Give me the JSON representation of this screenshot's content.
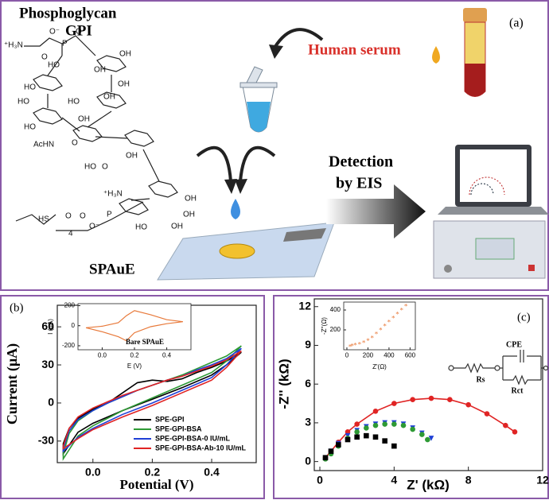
{
  "diagram": {
    "panel_label": "(a)",
    "title": "Phosphoglycan",
    "molecule": "GPI",
    "structure_labels": [
      "⁺H₃N",
      "O⁻",
      "P",
      "O",
      "O",
      "OH",
      "HO",
      "OH",
      "HO",
      "OH",
      "HO",
      "OH",
      "HO",
      "OH",
      "HO",
      "AcHN",
      "O",
      "OH",
      "HO",
      "O",
      "⁺H₃N",
      "O",
      "P",
      "O⁻",
      "HS",
      "4",
      "O",
      "OH",
      "OH",
      "HO",
      "OH"
    ],
    "serum_label": "Human serum",
    "detection_label": [
      "Detection",
      "by EIS"
    ],
    "electrode_label": "SPAuE"
  },
  "chart_data": [
    {
      "type": "line",
      "panel_label": "(b)",
      "xlabel": "Potential (V)",
      "ylabel": "Current (μA)",
      "xlim": [
        -0.12,
        0.55
      ],
      "ylim": [
        -47,
        77
      ],
      "xticks": [
        {
          "value": 0,
          "label": "0.0"
        },
        0.2,
        0.4
      ],
      "yticks": [
        -30,
        0,
        30,
        60
      ],
      "legend": "lower right",
      "series": [
        {
          "name": "SPE-GPI",
          "color": "#000000",
          "x": [
            -0.1,
            -0.08,
            -0.05,
            0,
            0.05,
            0.1,
            0.15,
            0.2,
            0.25,
            0.3,
            0.35,
            0.4,
            0.45,
            0.5,
            0.45,
            0.4,
            0.3,
            0.2,
            0.1,
            0,
            -0.05,
            -0.1
          ],
          "values": [
            -32,
            -20,
            -12,
            -5,
            0,
            8,
            16,
            18,
            17,
            19,
            24,
            28,
            33,
            40,
            30,
            22,
            12,
            3,
            -6,
            -16,
            -23,
            -40
          ]
        },
        {
          "name": "SPE-GPI-BSA",
          "color": "#2e9a35",
          "x": [
            -0.1,
            -0.08,
            -0.05,
            0,
            0.05,
            0.1,
            0.15,
            0.2,
            0.25,
            0.3,
            0.35,
            0.4,
            0.45,
            0.5,
            0.45,
            0.4,
            0.3,
            0.2,
            0.1,
            0,
            -0.05,
            -0.1
          ],
          "values": [
            -40,
            -24,
            -14,
            -6,
            0,
            5,
            10,
            14,
            18,
            22,
            27,
            32,
            37,
            45,
            33,
            24,
            14,
            4,
            -6,
            -18,
            -26,
            -44
          ]
        },
        {
          "name": "SPE-GPI-BSA-0 IU/mL",
          "color": "#1f3fd6",
          "x": [
            -0.1,
            -0.08,
            -0.05,
            0,
            0.05,
            0.1,
            0.15,
            0.2,
            0.25,
            0.3,
            0.35,
            0.4,
            0.45,
            0.5,
            0.45,
            0.4,
            0.3,
            0.2,
            0.1,
            0,
            -0.05,
            -0.1
          ],
          "values": [
            -36,
            -22,
            -13,
            -6,
            0,
            5,
            10,
            14,
            18,
            21,
            26,
            30,
            35,
            43,
            30,
            20,
            10,
            0,
            -9,
            -20,
            -27,
            -38
          ]
        },
        {
          "name": "SPE-GPI-BSA-Ab-10 IU/mL",
          "color": "#e02424",
          "x": [
            -0.1,
            -0.08,
            -0.05,
            0,
            0.05,
            0.1,
            0.15,
            0.2,
            0.25,
            0.3,
            0.35,
            0.4,
            0.45,
            0.5,
            0.45,
            0.4,
            0.3,
            0.2,
            0.1,
            0,
            -0.05,
            -0.1
          ],
          "values": [
            -34,
            -20,
            -11,
            -4,
            1,
            6,
            10,
            14,
            18,
            21,
            25,
            29,
            34,
            41,
            28,
            18,
            8,
            -2,
            -11,
            -21,
            -28,
            -36
          ]
        }
      ],
      "inset": {
        "type": "line",
        "label": "Bare SPAuE",
        "xlabel": "E (V)",
        "ylabel": "I (μA)",
        "xlim": [
          -0.15,
          0.55
        ],
        "ylim": [
          -240,
          220
        ],
        "xticks": [
          {
            "value": 0,
            "label": "0.0"
          },
          0.2,
          0.4
        ],
        "yticks": [
          -200,
          0,
          200
        ],
        "series": [
          {
            "color": "#e8793a",
            "x": [
              -0.1,
              0,
              0.1,
              0.15,
              0.2,
              0.3,
              0.4,
              0.5,
              0.4,
              0.3,
              0.2,
              0.15,
              0.1,
              0,
              -0.1
            ],
            "values": [
              -20,
              -5,
              30,
              100,
              150,
              110,
              60,
              40,
              20,
              -10,
              -70,
              -150,
              -110,
              -60,
              -20
            ]
          }
        ]
      }
    },
    {
      "type": "scatter",
      "panel_label": "(c)",
      "xlabel": "Z' (kΩ)",
      "ylabel": "-Z'' (kΩ)",
      "xlim": [
        -0.3,
        12
      ],
      "ylim": [
        -0.7,
        12.6
      ],
      "xticks": [
        0,
        4,
        8,
        12
      ],
      "yticks": [
        0,
        3,
        6,
        9,
        12
      ],
      "circuit_labels": [
        "CPE",
        "Rs",
        "Rct"
      ],
      "series": [
        {
          "color": "#e02424",
          "marker": "circle",
          "line": true,
          "x": [
            0.3,
            0.6,
            1,
            1.5,
            2,
            3,
            4,
            5,
            6,
            7,
            8,
            9,
            10,
            10.5
          ],
          "values": [
            0.3,
            0.8,
            1.5,
            2.3,
            2.9,
            3.9,
            4.5,
            4.8,
            4.9,
            4.8,
            4.4,
            3.7,
            2.8,
            2.3
          ]
        },
        {
          "color": "#1f3fd6",
          "marker": "triangle",
          "x": [
            0.3,
            0.6,
            1,
            1.5,
            2,
            2.5,
            3,
            3.5,
            4,
            4.5,
            5,
            5.5,
            6
          ],
          "values": [
            0.3,
            0.8,
            1.4,
            2,
            2.4,
            2.7,
            2.9,
            3,
            3,
            2.9,
            2.6,
            2.2,
            1.8
          ]
        },
        {
          "color": "#2e9a35",
          "marker": "circle",
          "x": [
            0.3,
            0.6,
            1,
            1.5,
            2,
            2.5,
            3,
            3.5,
            4,
            4.5,
            5,
            5.5,
            5.8
          ],
          "values": [
            0.2,
            0.6,
            1.2,
            1.8,
            2.3,
            2.6,
            2.8,
            2.9,
            2.9,
            2.8,
            2.5,
            2.1,
            1.7
          ]
        },
        {
          "color": "#000000",
          "marker": "square",
          "x": [
            0.3,
            0.6,
            1,
            1.5,
            2,
            2.5,
            3,
            3.5,
            4
          ],
          "values": [
            0.3,
            0.8,
            1.3,
            1.7,
            1.9,
            2,
            1.9,
            1.6,
            1.2
          ]
        }
      ],
      "inset": {
        "type": "scatter",
        "xlabel": "Z'(Ω)",
        "ylabel": "-Z''(Ω)",
        "xlim": [
          -30,
          650
        ],
        "ylim": [
          0,
          480
        ],
        "xticks": [
          0,
          200,
          400,
          600
        ],
        "yticks": [
          200,
          400
        ],
        "series": [
          {
            "color": "#e8793a",
            "marker": "star",
            "x": [
              30,
              50,
              80,
              120,
              160,
              200,
              240,
              280,
              320,
              360,
              400,
              440,
              480,
              520,
              560
            ],
            "values": [
              20,
              30,
              35,
              45,
              60,
              80,
              110,
              150,
              190,
              230,
              270,
              310,
              350,
              390,
              430
            ]
          }
        ]
      }
    }
  ]
}
